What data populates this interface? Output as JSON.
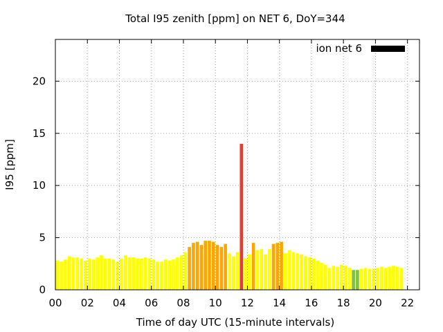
{
  "chart_data": {
    "type": "bar",
    "title": "Total I95 zenith [ppm] on NET 6, DoY=344",
    "xlabel": "Time of day UTC (15-minute intervals)",
    "ylabel": "I95 [ppm]",
    "legend": {
      "label": "ion net 6",
      "position": "top-right",
      "color": "#000000"
    },
    "grid": true,
    "xlim": [
      0,
      22.75
    ],
    "ylim": [
      0,
      24
    ],
    "x_ticks": [
      "00",
      "02",
      "04",
      "06",
      "08",
      "10",
      "12",
      "14",
      "16",
      "18",
      "20",
      "22"
    ],
    "y_ticks": [
      "0",
      "5",
      "10",
      "15",
      "20"
    ],
    "bar_interval_hours": 0.25,
    "colors": {
      "yellow": "#ffff00",
      "orange": "#ffa500",
      "red": "#e04030",
      "green": "#80c040"
    },
    "values": [
      2.8,
      2.7,
      2.9,
      3.2,
      3.1,
      3.1,
      3.0,
      2.8,
      3.0,
      2.9,
      3.1,
      3.3,
      3.0,
      3.0,
      2.9,
      2.7,
      3.0,
      3.3,
      3.1,
      3.1,
      3.0,
      3.0,
      3.1,
      3.0,
      2.9,
      2.7,
      2.7,
      2.9,
      2.8,
      2.9,
      3.1,
      3.3,
      3.6,
      4.1,
      4.5,
      4.6,
      4.3,
      4.7,
      4.7,
      4.6,
      4.3,
      4.1,
      4.4,
      3.5,
      3.2,
      3.6,
      14.0,
      3.0,
      3.4,
      4.5,
      3.8,
      3.9,
      3.4,
      3.9,
      4.4,
      4.5,
      4.6,
      3.5,
      3.8,
      3.6,
      3.5,
      3.4,
      3.2,
      3.1,
      3.0,
      2.8,
      2.6,
      2.4,
      2.1,
      2.3,
      2.2,
      2.4,
      2.3,
      2.1,
      1.9,
      1.9,
      2.0,
      2.1,
      2.0,
      2.0,
      2.1,
      2.2,
      2.1,
      2.2,
      2.3,
      2.2,
      2.1
    ],
    "bar_colors": [
      "yellow",
      "yellow",
      "yellow",
      "yellow",
      "yellow",
      "yellow",
      "yellow",
      "yellow",
      "yellow",
      "yellow",
      "yellow",
      "yellow",
      "yellow",
      "yellow",
      "yellow",
      "yellow",
      "yellow",
      "yellow",
      "yellow",
      "yellow",
      "yellow",
      "yellow",
      "yellow",
      "yellow",
      "yellow",
      "yellow",
      "yellow",
      "yellow",
      "yellow",
      "yellow",
      "yellow",
      "yellow",
      "yellow",
      "orange",
      "orange",
      "orange",
      "orange",
      "orange",
      "orange",
      "orange",
      "orange",
      "orange",
      "orange",
      "yellow",
      "yellow",
      "yellow",
      "red",
      "yellow",
      "yellow",
      "orange",
      "yellow",
      "yellow",
      "yellow",
      "yellow",
      "orange",
      "orange",
      "orange",
      "yellow",
      "yellow",
      "yellow",
      "yellow",
      "yellow",
      "yellow",
      "yellow",
      "yellow",
      "yellow",
      "yellow",
      "yellow",
      "yellow",
      "yellow",
      "yellow",
      "yellow",
      "yellow",
      "yellow",
      "green",
      "green",
      "yellow",
      "yellow",
      "yellow",
      "yellow",
      "yellow",
      "yellow",
      "yellow",
      "yellow",
      "yellow",
      "yellow",
      "yellow"
    ]
  }
}
